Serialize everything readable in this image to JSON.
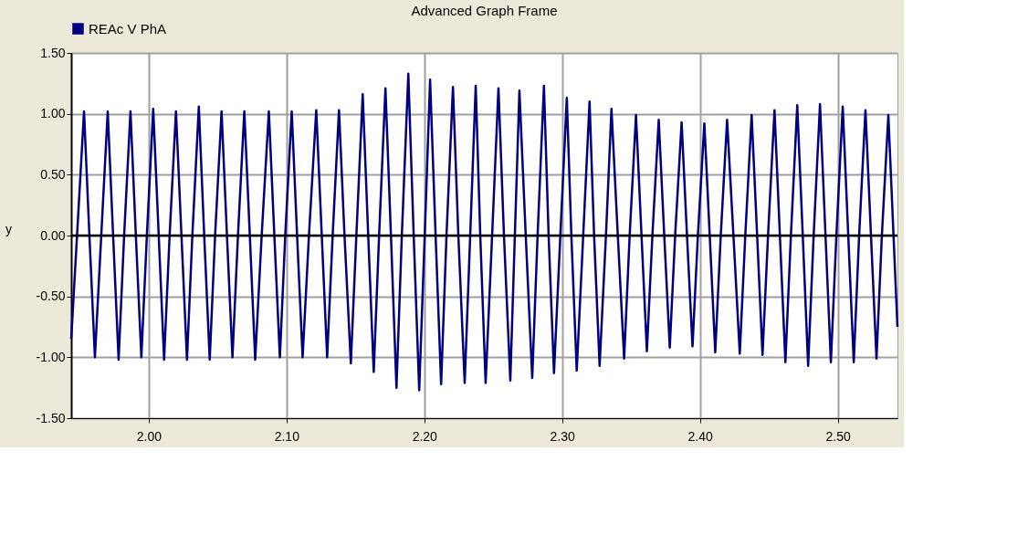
{
  "chart_data": {
    "type": "line",
    "title": "Advanced Graph Frame",
    "ylabel": "y",
    "x": [
      1.9438,
      1.9531,
      1.957,
      1.961,
      1.9656,
      1.9703,
      1.9742,
      1.9782,
      1.9822,
      1.9868,
      1.9907,
      1.9947,
      1.9987,
      2.0033,
      2.0073,
      2.0112,
      2.0152,
      2.0198,
      2.0238,
      2.0278,
      2.0317,
      2.0364,
      2.0403,
      2.0443,
      2.0482,
      2.0529,
      2.0568,
      2.0608,
      2.0648,
      2.0694,
      2.0734,
      2.0773,
      2.082,
      2.0872,
      2.0912,
      2.0952,
      2.0991,
      2.1038,
      2.1077,
      2.1117,
      2.1163,
      2.1216,
      2.1256,
      2.1295,
      2.1335,
      2.1381,
      2.1421,
      2.1467,
      2.1507,
      2.1553,
      2.1593,
      2.1633,
      2.1672,
      2.1718,
      2.1758,
      2.1798,
      2.1837,
      2.1884,
      2.1923,
      2.1963,
      2.2003,
      2.2042,
      2.2082,
      2.2122,
      2.2161,
      2.2208,
      2.2247,
      2.2293,
      2.2333,
      2.2373,
      2.2406,
      2.2445,
      2.2492,
      2.2538,
      2.2578,
      2.2624,
      2.2657,
      2.269,
      2.2736,
      2.2783,
      2.2822,
      2.2868,
      2.2902,
      2.2941,
      2.2987,
      2.3034,
      2.3067,
      2.3106,
      2.3153,
      2.3199,
      2.3232,
      2.3272,
      2.3318,
      2.3358,
      2.3404,
      2.345,
      2.349,
      2.3536,
      2.3576,
      2.3615,
      2.3655,
      2.3701,
      2.3741,
      2.3781,
      2.382,
      2.3867,
      2.3906,
      2.3946,
      2.3985,
      2.4032,
      2.4071,
      2.4111,
      2.4151,
      2.4197,
      2.4243,
      2.4289,
      2.4329,
      2.4375,
      2.4415,
      2.4454,
      2.4494,
      2.4541,
      2.458,
      2.462,
      2.466,
      2.4706,
      2.4746,
      2.4785,
      2.4825,
      2.4871,
      2.4911,
      2.495,
      2.499,
      2.5036,
      2.5076,
      2.5116,
      2.5155,
      2.5201,
      2.5241,
      2.5281,
      2.532,
      2.5367,
      2.5433
    ],
    "series": [
      {
        "name": "REAc V PhA",
        "color": "#000080",
        "values": [
          -0.85,
          1.02,
          0,
          -1.0,
          0,
          1.02,
          0,
          -1.02,
          0,
          1.02,
          0,
          -1.0,
          0,
          1.04,
          0,
          -1.02,
          0,
          1.02,
          0,
          -1.02,
          0,
          1.06,
          0,
          -1.02,
          0,
          1.02,
          0,
          -1.0,
          0,
          1.02,
          0,
          -1.02,
          0,
          1.02,
          0,
          -1.0,
          0,
          1.02,
          0,
          -1.0,
          0,
          1.03,
          0,
          -1.0,
          0,
          1.03,
          0,
          -1.05,
          0,
          1.16,
          0,
          -1.12,
          0,
          1.21,
          0,
          -1.25,
          0,
          1.33,
          0,
          -1.27,
          0,
          1.28,
          0,
          -1.22,
          0,
          1.22,
          0,
          -1.21,
          0,
          1.23,
          0,
          -1.21,
          0,
          1.21,
          0,
          -1.19,
          0,
          1.19,
          0,
          -1.17,
          0,
          1.23,
          0,
          -1.13,
          0,
          1.13,
          0,
          -1.11,
          0,
          1.1,
          0,
          -1.07,
          0,
          1.04,
          0,
          -1.01,
          0,
          0.99,
          0,
          -0.95,
          0,
          0.95,
          0,
          -0.92,
          0,
          0.93,
          0,
          -0.91,
          0,
          0.92,
          0,
          -0.96,
          0,
          0.95,
          0,
          -0.97,
          0,
          0.99,
          0,
          -0.98,
          0,
          1.03,
          0,
          -1.04,
          0,
          1.07,
          0,
          -1.07,
          0,
          1.08,
          0,
          -1.04,
          0,
          1.06,
          0,
          -1.04,
          0,
          1.03,
          0,
          -1.01,
          0,
          0.99,
          -0.75
        ]
      }
    ],
    "xlim": [
      1.9438,
      2.5433
    ],
    "xticks": [
      {
        "value": 2.0,
        "label": "2.00"
      },
      {
        "value": 2.1,
        "label": "2.10"
      },
      {
        "value": 2.2,
        "label": "2.20"
      },
      {
        "value": 2.3,
        "label": "2.30"
      },
      {
        "value": 2.4,
        "label": "2.40"
      },
      {
        "value": 2.5,
        "label": "2.50"
      }
    ],
    "ylim": [
      -1.5,
      1.5
    ],
    "yticks": [
      {
        "value": -1.5,
        "label": "-1.50"
      },
      {
        "value": -1.0,
        "label": "-1.00"
      },
      {
        "value": -0.5,
        "label": "-0.50"
      },
      {
        "value": 0,
        "label": "0.00"
      },
      {
        "value": 0.5,
        "label": "0.50"
      },
      {
        "value": 1.0,
        "label": "1.00"
      },
      {
        "value": 1.5,
        "label": "1.50"
      }
    ],
    "ref_lines": [
      {
        "axis": "y",
        "value": 0,
        "color": "#000000"
      }
    ],
    "grid": true,
    "legend": "top left",
    "marker": "none",
    "line_style": "solid"
  }
}
